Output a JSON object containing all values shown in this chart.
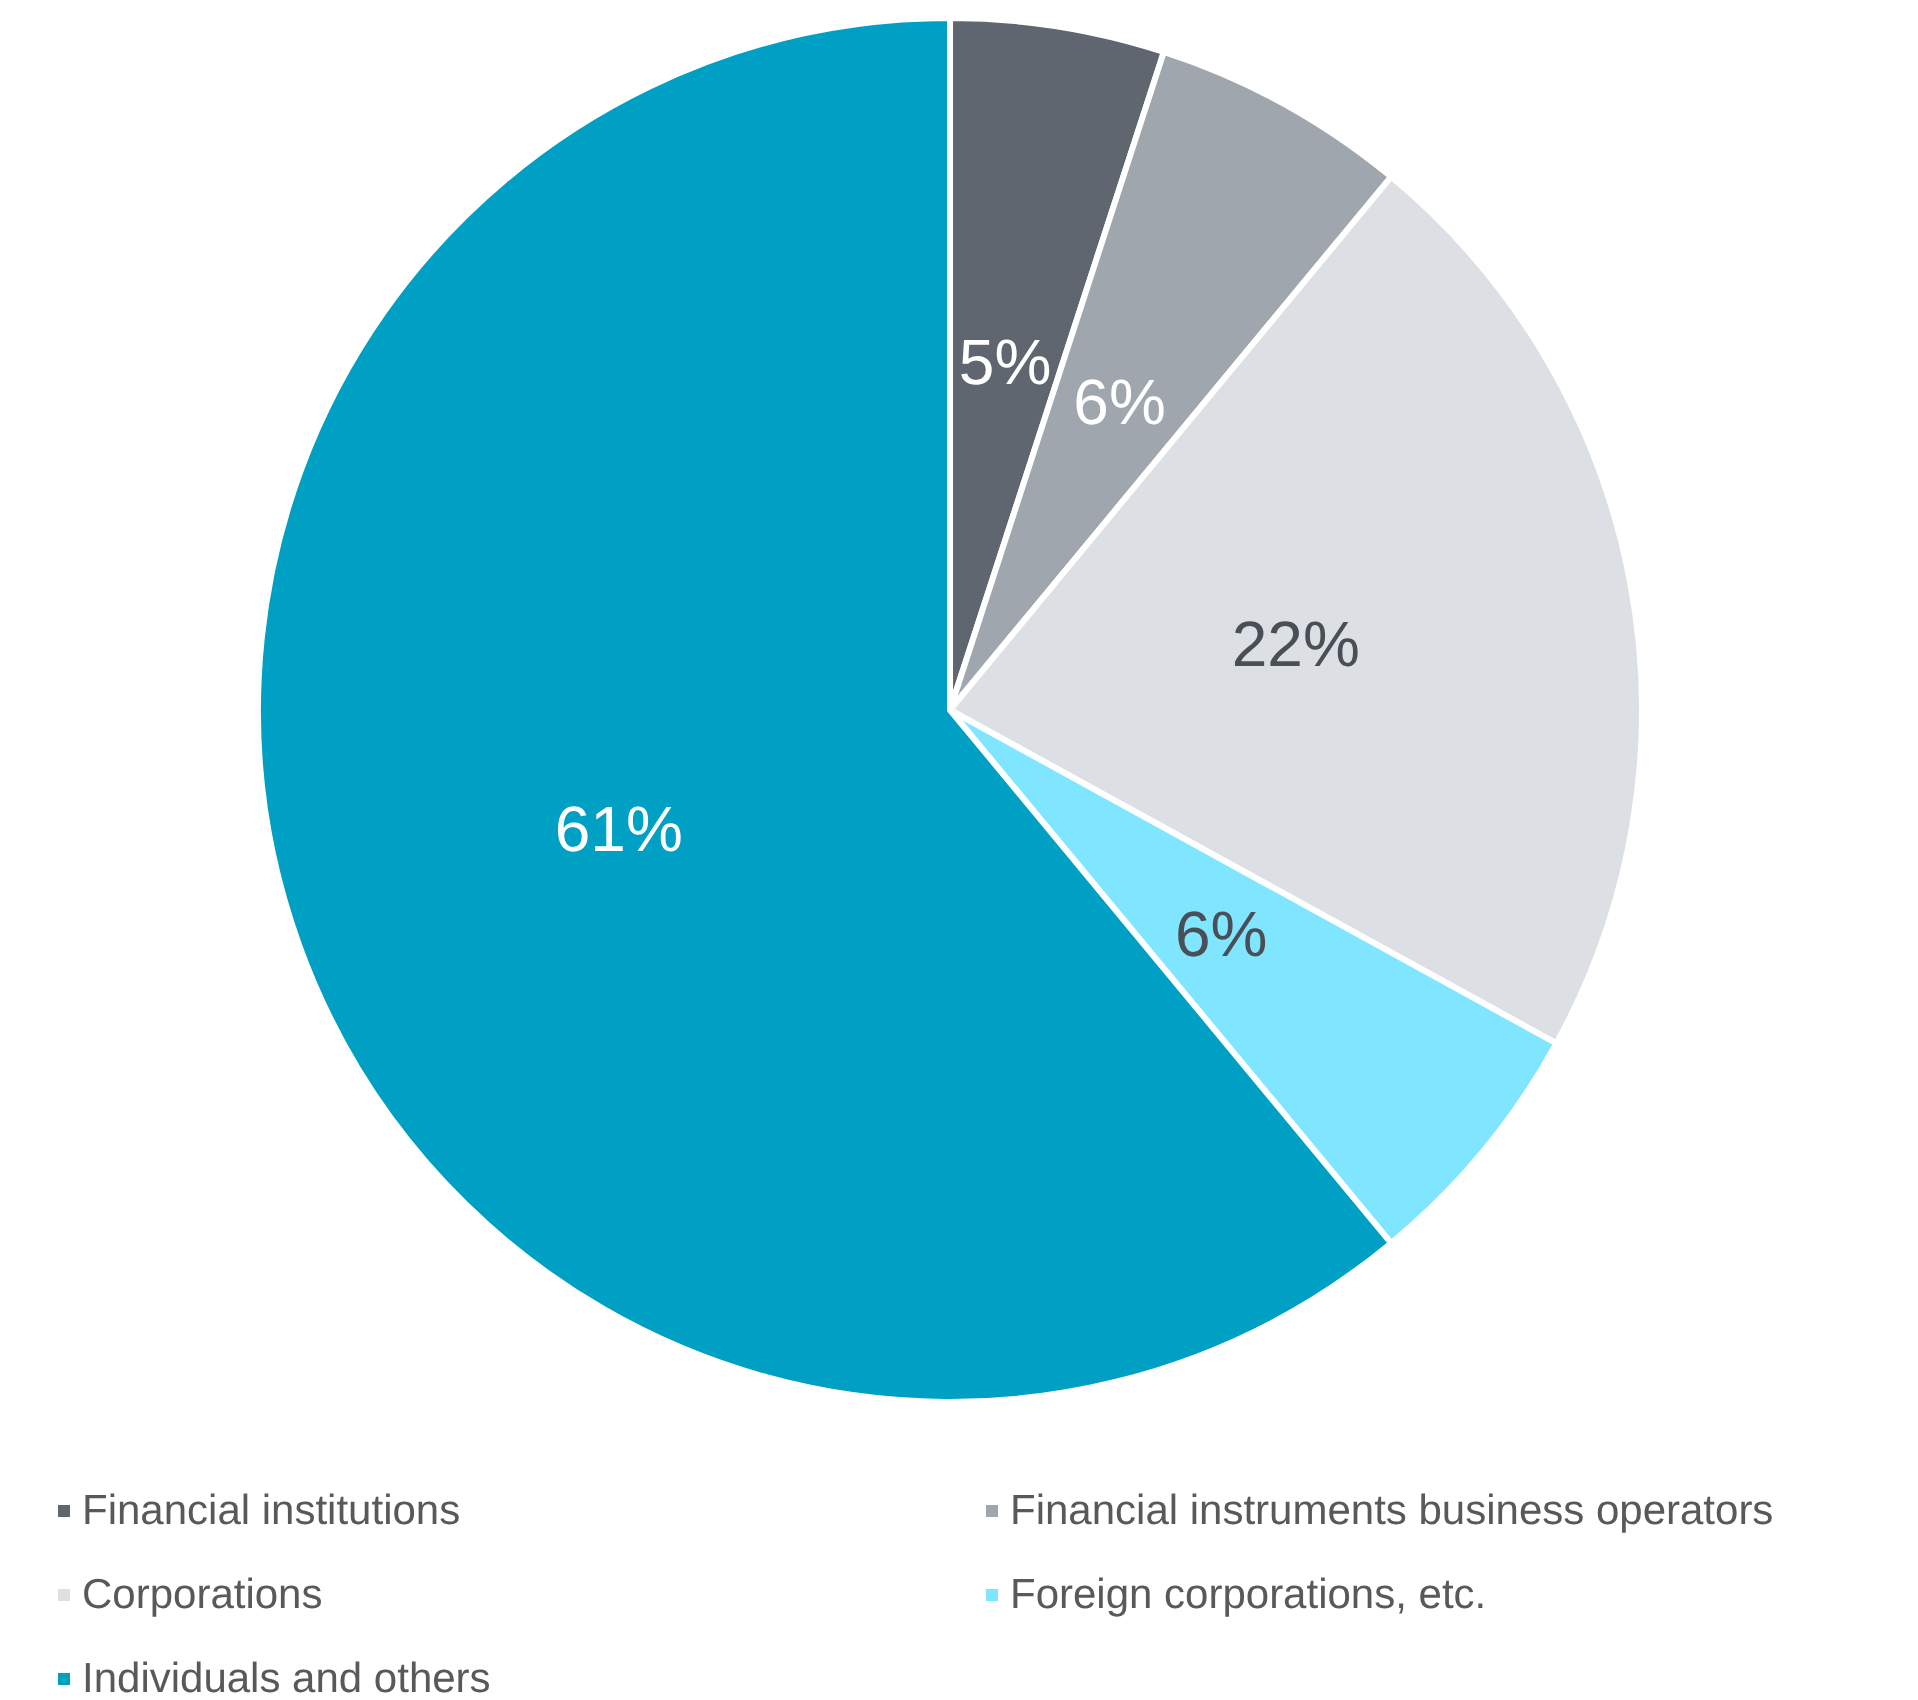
{
  "chart_data": {
    "type": "pie",
    "categories": [
      "Financial institutions",
      "Financial instruments business operators",
      "Corporations",
      "Foreign corporations, etc.",
      "Individuals and others"
    ],
    "values": [
      5,
      6,
      22,
      6,
      61
    ],
    "colors": [
      "#5f6670",
      "#a0a6ae",
      "#dcdfe3",
      "#80e6ff",
      "#00a0c4"
    ],
    "value_labels": [
      "5%",
      "6%",
      "22%",
      "6%",
      "61%"
    ],
    "legend": "bottom"
  }
}
